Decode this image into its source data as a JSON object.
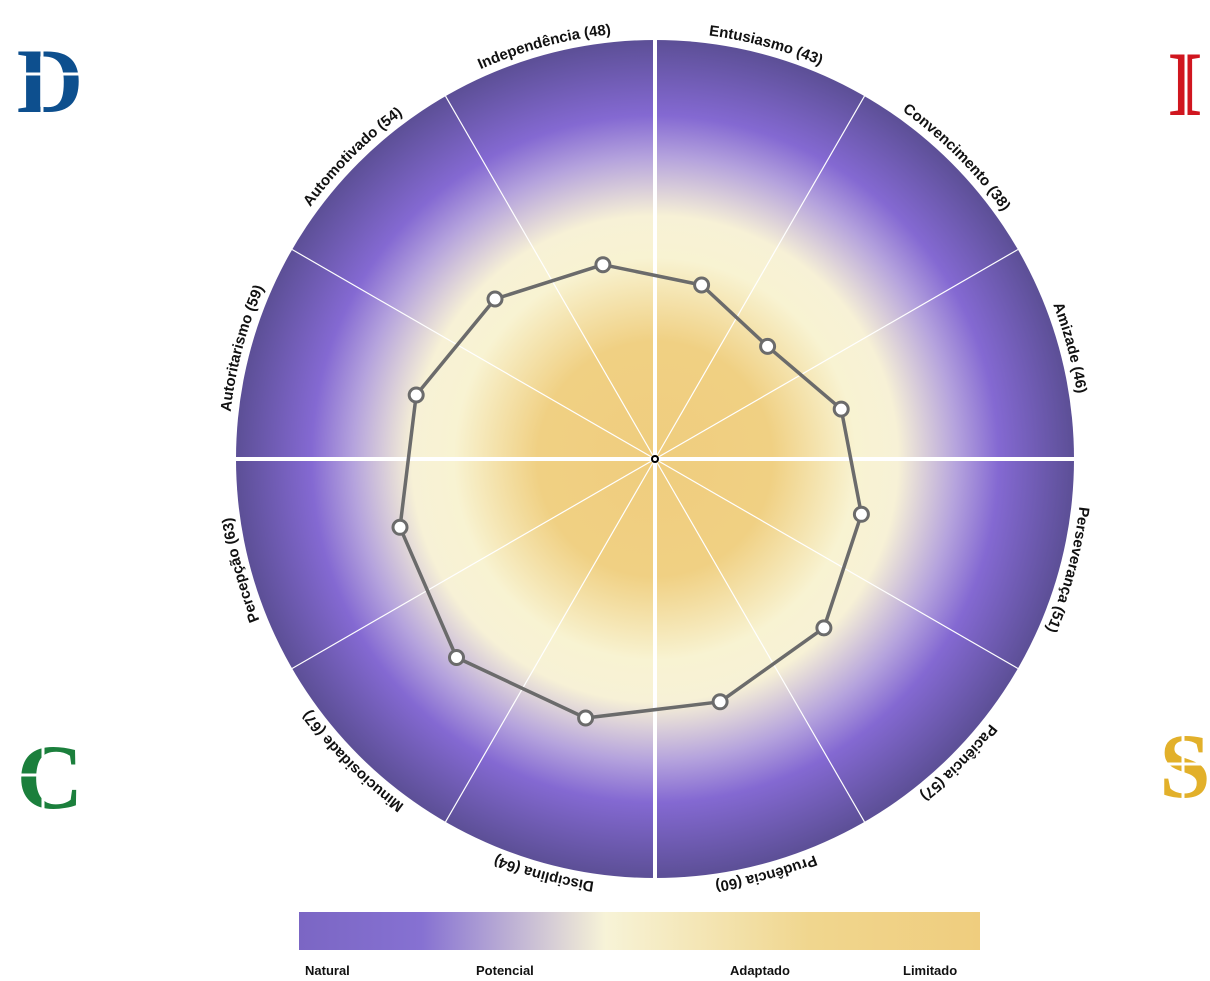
{
  "chart_data": {
    "type": "radar",
    "categories": [
      "Entusiasmo (43)",
      "Convencimento (38)",
      "Amizade (46)",
      "Perseverança (51)",
      "Paciência (57)",
      "Prudência (60)",
      "Disciplina (64)",
      "Minuciosidade (67)",
      "Percepção (63)",
      "Autoritarismo (59)",
      "Automotivado (54)",
      "Independência (48)"
    ],
    "values": [
      43,
      38,
      46,
      51,
      57,
      60,
      64,
      67,
      63,
      59,
      54,
      48
    ],
    "quadrant_letters": [
      "D",
      "I",
      "S",
      "C"
    ],
    "legend": [
      "Natural",
      "Potencial",
      "Adaptado",
      "Limitado"
    ],
    "colors": {
      "outer": "#5c4f96",
      "purple": "#8469d2",
      "cream": "#f8f3d2",
      "gold": "#efcd7e",
      "line": "#6b6b6b",
      "D": "#0d4f8e",
      "I": "#d0161f",
      "S": "#e2b02a",
      "C": "#1b7f3c"
    }
  }
}
